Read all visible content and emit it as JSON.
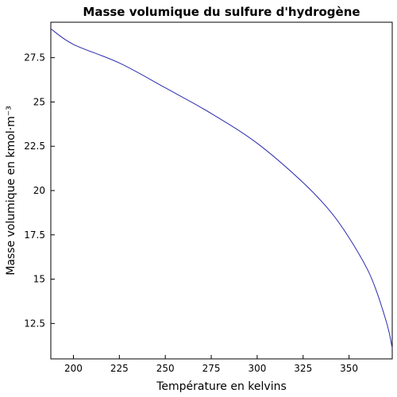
{
  "chart_data": {
    "type": "line",
    "title": "Masse volumique du sulfure d'hydrogène",
    "xlabel": "Température en kelvins",
    "ylabel": "Masse volumique en kmol·m⁻³",
    "xlim": [
      187.7,
      373.5
    ],
    "ylim": [
      10.5,
      29.5
    ],
    "xticks": [
      200,
      225,
      250,
      275,
      300,
      325,
      350
    ],
    "yticks": [
      12.5,
      15,
      17.5,
      20,
      22.5,
      25,
      27.5
    ],
    "xtick_labels": [
      "200",
      "225",
      "250",
      "275",
      "300",
      "325",
      "350"
    ],
    "ytick_labels": [
      "12.5",
      "15",
      "17.5",
      "20",
      "22.5",
      "25",
      "27.5"
    ],
    "grid": false,
    "series": [
      {
        "color": "#2b2bb0",
        "x": [
          187.7,
          200,
          225,
          250,
          275,
          300,
          325,
          340,
          350,
          360,
          365,
          370,
          372,
          373.5
        ],
        "y": [
          29.13,
          28.25,
          27.2,
          25.8,
          24.35,
          22.67,
          20.45,
          18.8,
          17.34,
          15.55,
          14.3,
          12.7,
          11.9,
          11.1
        ]
      }
    ]
  }
}
